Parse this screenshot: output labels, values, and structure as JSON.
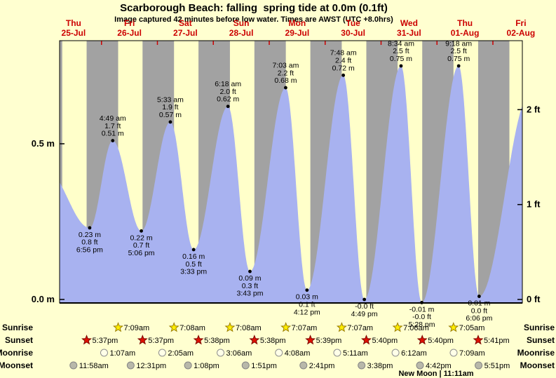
{
  "header": {
    "title": "Scarborough Beach: falling  spring tide at 0.0m (0.1ft)",
    "subtitle": "Image captured 42 minutes before low water. Times are AWST (UTC +8.0hrs)"
  },
  "chart_data": {
    "type": "area",
    "title": "Tide height curve for Scarborough Beach, 25-Jul to 02-Aug",
    "x_unit": "hours since 25-Jul 00:00 (AWST)",
    "y_unit": "metres",
    "x_range": [
      6,
      204.6
    ],
    "ylim_m": [
      -0.05,
      0.84
    ],
    "days": [
      {
        "weekday": "Thu",
        "date": "25-Jul"
      },
      {
        "weekday": "Fri",
        "date": "26-Jul"
      },
      {
        "weekday": "Sat",
        "date": "27-Jul"
      },
      {
        "weekday": "Sun",
        "date": "28-Jul"
      },
      {
        "weekday": "Mon",
        "date": "29-Jul"
      },
      {
        "weekday": "Tue",
        "date": "30-Jul"
      },
      {
        "weekday": "Wed",
        "date": "31-Jul"
      },
      {
        "weekday": "Thu",
        "date": "01-Aug"
      },
      {
        "weekday": "Fri",
        "date": "02-Aug"
      }
    ],
    "y_axis_left": [
      {
        "label": "0.5 m",
        "m": 0.5
      },
      {
        "label": "0.0 m",
        "m": 0.0
      }
    ],
    "y_axis_right": [
      {
        "label": "2 ft",
        "m": 0.6096
      },
      {
        "label": "1 ft",
        "m": 0.3048
      },
      {
        "label": "0 ft",
        "m": 0.0
      }
    ],
    "extremes": [
      {
        "kind": "edge",
        "t": 0.0,
        "height_m": 0.42,
        "label_lines": []
      },
      {
        "kind": "low",
        "t": 18.93,
        "height_m": 0.23,
        "label_lines": [
          "0.23 m",
          "0.8 ft",
          "6:56 pm"
        ]
      },
      {
        "kind": "high",
        "t": 28.82,
        "height_m": 0.51,
        "label_lines": [
          "4:49 am",
          "1.7 ft",
          "0.51 m"
        ]
      },
      {
        "kind": "low",
        "t": 41.1,
        "height_m": 0.22,
        "label_lines": [
          "0.22 m",
          "0.7 ft",
          "5:06 pm"
        ]
      },
      {
        "kind": "high",
        "t": 53.55,
        "height_m": 0.57,
        "label_lines": [
          "5:33 am",
          "1.9 ft",
          "0.57 m"
        ]
      },
      {
        "kind": "low",
        "t": 63.55,
        "height_m": 0.16,
        "label_lines": [
          "0.16 m",
          "0.5 ft",
          "3:33 pm"
        ]
      },
      {
        "kind": "high",
        "t": 78.3,
        "height_m": 0.62,
        "label_lines": [
          "6:18 am",
          "2.0 ft",
          "0.62 m"
        ]
      },
      {
        "kind": "low",
        "t": 87.72,
        "height_m": 0.09,
        "label_lines": [
          "0.09 m",
          "0.3 ft",
          "3:43 pm"
        ]
      },
      {
        "kind": "high",
        "t": 103.05,
        "height_m": 0.68,
        "label_lines": [
          "7:03 am",
          "2.2 ft",
          "0.68 m"
        ]
      },
      {
        "kind": "low",
        "t": 112.2,
        "height_m": 0.03,
        "label_lines": [
          "0.03 m",
          "0.1 ft",
          "4:12 pm"
        ]
      },
      {
        "kind": "high",
        "t": 127.8,
        "height_m": 0.72,
        "label_lines": [
          "7:48 am",
          "2.4 ft",
          "0.72 m"
        ]
      },
      {
        "kind": "low",
        "t": 136.82,
        "height_m": 0.0,
        "label_lines": [
          "-0.0 ft",
          "4:49 pm"
        ]
      },
      {
        "kind": "high",
        "t": 152.57,
        "height_m": 0.75,
        "label_lines": [
          "8:34 am",
          "2.5 ft",
          "0.75 m"
        ]
      },
      {
        "kind": "low",
        "t": 161.47,
        "height_m": -0.01,
        "label_lines": [
          "-0.01 m",
          "-0.0 ft",
          "5:28 pm"
        ]
      },
      {
        "kind": "high",
        "t": 177.3,
        "height_m": 0.75,
        "label_lines": [
          "9:18 am",
          "2.5 ft",
          "0.75 m"
        ]
      },
      {
        "kind": "low",
        "t": 186.1,
        "height_m": 0.01,
        "label_lines": [
          "0.01 m",
          "0.0 ft",
          "6:06 pm"
        ]
      },
      {
        "kind": "edge",
        "t": 208.0,
        "height_m": 0.66,
        "label_lines": []
      }
    ],
    "night_bands": [
      [
        6,
        7.15
      ],
      [
        17.62,
        31.15
      ],
      [
        41.62,
        55.13
      ],
      [
        65.63,
        79.13
      ],
      [
        89.63,
        103.12
      ],
      [
        113.65,
        127.12
      ],
      [
        137.67,
        151.1
      ],
      [
        161.67,
        175.08
      ],
      [
        185.68,
        199.08
      ]
    ],
    "colors": {
      "page_bg": "#ffffd0",
      "day_band": "#ffffca",
      "night_band": "#a2a2a2",
      "tide_fill": "#a8b2f0",
      "day_label": "#cc0000",
      "marker": "#000000",
      "border": "#000000"
    },
    "sun_moon": {
      "rows": [
        {
          "label": "Sunrise",
          "icon": "sunrise-star-icon",
          "shape": "star",
          "fill": "#ffee00",
          "stroke": "#9a7d00",
          "events": [
            {
              "t": 31.15,
              "time": "7:09am"
            },
            {
              "t": 55.13,
              "time": "7:08am"
            },
            {
              "t": 79.13,
              "time": "7:08am"
            },
            {
              "t": 103.12,
              "time": "7:07am"
            },
            {
              "t": 127.12,
              "time": "7:07am"
            },
            {
              "t": 151.1,
              "time": "7:06am"
            },
            {
              "t": 175.08,
              "time": "7:05am"
            }
          ]
        },
        {
          "label": "Sunset",
          "icon": "sunset-star-icon",
          "shape": "star",
          "fill": "#e01000",
          "stroke": "#7d0800",
          "events": [
            {
              "t": 17.62,
              "time": "5:37pm"
            },
            {
              "t": 41.62,
              "time": "5:37pm"
            },
            {
              "t": 65.63,
              "time": "5:38pm"
            },
            {
              "t": 89.63,
              "time": "5:38pm"
            },
            {
              "t": 113.65,
              "time": "5:39pm"
            },
            {
              "t": 137.67,
              "time": "5:40pm"
            },
            {
              "t": 161.67,
              "time": "5:40pm"
            },
            {
              "t": 185.68,
              "time": "5:41pm"
            }
          ]
        },
        {
          "label": "Moonrise",
          "icon": "moonrise-icon",
          "shape": "circle",
          "fill": "#ffffe8",
          "stroke": "#8f8f8f",
          "events": [
            {
              "t": 25.12,
              "time": "1:07am"
            },
            {
              "t": 50.08,
              "time": "2:05am"
            },
            {
              "t": 75.1,
              "time": "3:06am"
            },
            {
              "t": 100.13,
              "time": "4:08am"
            },
            {
              "t": 125.18,
              "time": "5:11am"
            },
            {
              "t": 150.2,
              "time": "6:12am"
            },
            {
              "t": 175.15,
              "time": "7:09am"
            }
          ]
        },
        {
          "label": "Moonset",
          "icon": "moonset-icon",
          "shape": "circle",
          "fill": "#b8b8aa",
          "stroke": "#858585",
          "events": [
            {
              "t": 11.97,
              "time": "11:58am"
            },
            {
              "t": 36.52,
              "time": "12:31pm"
            },
            {
              "t": 61.13,
              "time": "1:08pm"
            },
            {
              "t": 85.85,
              "time": "1:51pm"
            },
            {
              "t": 110.68,
              "time": "2:41pm"
            },
            {
              "t": 135.63,
              "time": "3:38pm"
            },
            {
              "t": 160.7,
              "time": "4:42pm"
            },
            {
              "t": 185.85,
              "time": "5:51pm"
            }
          ]
        }
      ],
      "new_moon_label": "New Moon | 11:11am"
    }
  }
}
